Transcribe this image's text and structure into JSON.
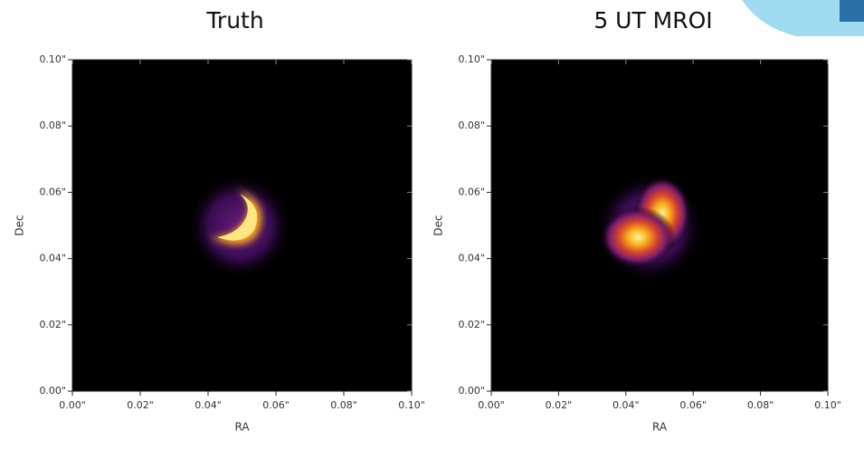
{
  "chart_data": [
    {
      "type": "image",
      "title": "Truth",
      "xlabel": "RA",
      "ylabel": "Dec",
      "xlim": [
        0,
        0.1
      ],
      "ylim": [
        0,
        0.1
      ],
      "xticks": [
        {
          "value": 0,
          "label": "0.00\""
        },
        {
          "value": 0.02,
          "label": "0.02\""
        },
        {
          "value": 0.04,
          "label": "0.04\""
        },
        {
          "value": 0.06,
          "label": "0.06\""
        },
        {
          "value": 0.08,
          "label": "0.08\""
        },
        {
          "value": 0.1,
          "label": "0.10\""
        }
      ],
      "yticks": [
        {
          "value": 0,
          "label": "0.00\""
        },
        {
          "value": 0.02,
          "label": "0.02\""
        },
        {
          "value": 0.04,
          "label": "0.04\""
        },
        {
          "value": 0.06,
          "label": "0.06\""
        },
        {
          "value": 0.08,
          "label": "0.08\""
        },
        {
          "value": 0.1,
          "label": "0.10\""
        }
      ]
    },
    {
      "type": "image",
      "title": "5 UT MROI",
      "xlabel": "RA",
      "ylabel": "Dec",
      "xlim": [
        0,
        0.1
      ],
      "ylim": [
        0,
        0.1
      ],
      "xticks": [
        {
          "value": 0,
          "label": "0.00\""
        },
        {
          "value": 0.02,
          "label": "0.02\""
        },
        {
          "value": 0.04,
          "label": "0.04\""
        },
        {
          "value": 0.06,
          "label": "0.06\""
        },
        {
          "value": 0.08,
          "label": "0.08\""
        },
        {
          "value": 0.1,
          "label": "0.10\""
        }
      ],
      "yticks": [
        {
          "value": 0,
          "label": "0.00\""
        },
        {
          "value": 0.02,
          "label": "0.02\""
        },
        {
          "value": 0.04,
          "label": "0.04\""
        },
        {
          "value": 0.06,
          "label": "0.06\""
        },
        {
          "value": 0.08,
          "label": "0.08\""
        },
        {
          "value": 0.1,
          "label": "0.10\""
        }
      ]
    }
  ]
}
